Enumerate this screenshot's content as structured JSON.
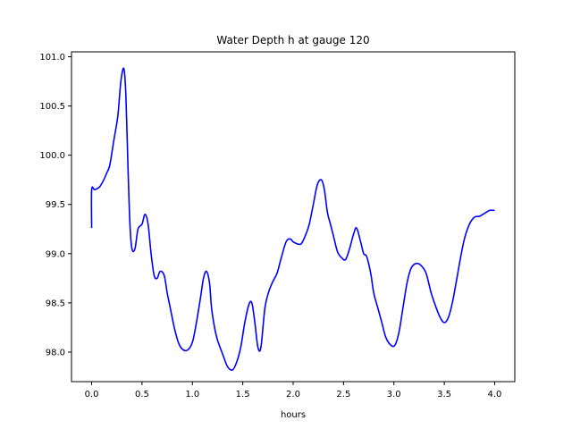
{
  "chart_data": {
    "type": "line",
    "title": "Water Depth h at gauge 120",
    "xlabel": "hours",
    "ylabel": "",
    "xlim": [
      -0.2,
      4.2
    ],
    "ylim": [
      97.7,
      101.05
    ],
    "x_ticks": [
      0.0,
      0.5,
      1.0,
      1.5,
      2.0,
      2.5,
      3.0,
      3.5,
      4.0
    ],
    "x_tick_labels": [
      "0.0",
      "0.5",
      "1.0",
      "1.5",
      "2.0",
      "2.5",
      "3.0",
      "3.5",
      "4.0"
    ],
    "y_ticks": [
      98.0,
      98.5,
      99.0,
      99.5,
      100.0,
      100.5,
      101.0
    ],
    "y_tick_labels": [
      "98.0",
      "98.5",
      "99.0",
      "99.5",
      "100.0",
      "100.5",
      "101.0"
    ],
    "grid": false,
    "legend": null,
    "series": [
      {
        "color": "#0000ff",
        "x": [
          0.0,
          0.0,
          0.03,
          0.08,
          0.12,
          0.15,
          0.18,
          0.22,
          0.26,
          0.29,
          0.32,
          0.34,
          0.36,
          0.38,
          0.4,
          0.43,
          0.46,
          0.5,
          0.53,
          0.56,
          0.59,
          0.62,
          0.65,
          0.68,
          0.72,
          0.75,
          0.78,
          0.82,
          0.86,
          0.9,
          0.95,
          1.0,
          1.04,
          1.08,
          1.11,
          1.14,
          1.17,
          1.19,
          1.22,
          1.25,
          1.3,
          1.35,
          1.4,
          1.44,
          1.48,
          1.52,
          1.56,
          1.59,
          1.62,
          1.65,
          1.68,
          1.72,
          1.76,
          1.8,
          1.84,
          1.88,
          1.93,
          1.97,
          2.0,
          2.04,
          2.08,
          2.12,
          2.16,
          2.2,
          2.24,
          2.28,
          2.31,
          2.34,
          2.37,
          2.4,
          2.44,
          2.48,
          2.52,
          2.56,
          2.6,
          2.63,
          2.67,
          2.7,
          2.73,
          2.77,
          2.8,
          2.84,
          2.88,
          2.92,
          2.97,
          3.01,
          3.05,
          3.09,
          3.13,
          3.17,
          3.22,
          3.27,
          3.32,
          3.37,
          3.42,
          3.46,
          3.5,
          3.54,
          3.58,
          3.62,
          3.66,
          3.7,
          3.75,
          3.8,
          3.85,
          3.9,
          3.95,
          3.98,
          4.0
        ],
        "y": [
          99.26,
          99.65,
          99.65,
          99.68,
          99.75,
          99.82,
          99.9,
          100.15,
          100.4,
          100.75,
          100.88,
          100.6,
          99.9,
          99.3,
          99.05,
          99.05,
          99.25,
          99.3,
          99.4,
          99.3,
          99.0,
          98.78,
          98.75,
          98.82,
          98.78,
          98.6,
          98.45,
          98.25,
          98.1,
          98.03,
          98.02,
          98.1,
          98.3,
          98.55,
          98.75,
          98.82,
          98.7,
          98.45,
          98.25,
          98.12,
          97.98,
          97.85,
          97.82,
          97.9,
          98.05,
          98.3,
          98.48,
          98.5,
          98.3,
          98.05,
          98.05,
          98.45,
          98.62,
          98.72,
          98.8,
          98.95,
          99.12,
          99.15,
          99.12,
          99.1,
          99.1,
          99.18,
          99.3,
          99.5,
          99.7,
          99.75,
          99.65,
          99.42,
          99.3,
          99.18,
          99.02,
          98.96,
          98.94,
          99.05,
          99.2,
          99.26,
          99.12,
          99.0,
          98.97,
          98.8,
          98.6,
          98.45,
          98.3,
          98.15,
          98.07,
          98.07,
          98.2,
          98.45,
          98.7,
          98.85,
          98.9,
          98.88,
          98.8,
          98.6,
          98.45,
          98.35,
          98.3,
          98.35,
          98.5,
          98.72,
          98.95,
          99.15,
          99.3,
          99.37,
          99.38,
          99.41,
          99.44,
          99.44,
          99.44
        ]
      }
    ]
  }
}
